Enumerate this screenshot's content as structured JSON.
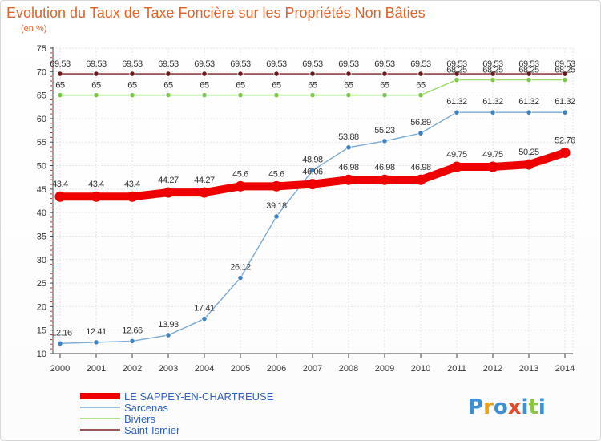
{
  "chart_data": {
    "type": "line",
    "title": "Evolution du Taux de Taxe Foncière sur les Propriétés Non Bâties",
    "ylabel": "(en %)",
    "xlabel": "",
    "x": [
      "2000",
      "2001",
      "2002",
      "2003",
      "2004",
      "2005",
      "2006",
      "2007",
      "2008",
      "2009",
      "2010",
      "2011",
      "2012",
      "2013",
      "2014"
    ],
    "ylim": [
      10,
      75
    ],
    "yticks": [
      10,
      15,
      20,
      25,
      30,
      35,
      40,
      45,
      50,
      55,
      60,
      65,
      70,
      75
    ],
    "grid": true,
    "legend_position": "bottom-left",
    "series": [
      {
        "name": "Saint-Ismier",
        "color": "#7b2020",
        "marker": "#6a1a1a",
        "values": [
          69.53,
          69.53,
          69.53,
          69.53,
          69.53,
          69.53,
          69.53,
          69.53,
          69.53,
          69.53,
          69.53,
          69.53,
          69.53,
          69.53,
          69.53
        ],
        "labels": [
          "69.53",
          "69.53",
          "69.53",
          "69.53",
          "69.53",
          "69.53",
          "69.53",
          "69.53",
          "69.53",
          "69.53",
          "69.53",
          "69.53",
          "69.53",
          "69.53",
          "69.53"
        ]
      },
      {
        "name": "Biviers",
        "color": "#9ad86a",
        "marker": "#7cc64a",
        "values": [
          65,
          65,
          65,
          65,
          65,
          65,
          65,
          65,
          65,
          65,
          65,
          68.25,
          68.25,
          68.25,
          68.25
        ],
        "labels": [
          "65",
          "65",
          "65",
          "65",
          "65",
          "65",
          "65",
          "65",
          "65",
          "65",
          "65",
          "68.25",
          "68.25",
          "68.25",
          "68.25"
        ]
      },
      {
        "name": "Sarcenas",
        "color": "#7aaad6",
        "marker": "#3f82c0",
        "values": [
          12.16,
          12.41,
          12.66,
          13.93,
          17.41,
          26.12,
          39.18,
          48.98,
          53.88,
          55.23,
          56.89,
          61.32,
          61.32,
          61.32,
          61.32
        ],
        "labels": [
          "12.16",
          "12.41",
          "12.66",
          "13.93",
          "17.41",
          "26.12",
          "39.18",
          "48.98",
          "53.88",
          "55.23",
          "56.89",
          "61.32",
          "61.32",
          "61.32",
          "61.32"
        ]
      },
      {
        "name": "LE SAPPEY-EN-CHARTREUSE",
        "color": "#ee0000",
        "marker": "#ee0000",
        "values": [
          43.4,
          43.4,
          43.4,
          44.27,
          44.27,
          45.6,
          45.6,
          46.06,
          46.98,
          46.98,
          46.98,
          49.75,
          49.75,
          50.25,
          52.76
        ],
        "labels": [
          "43.4",
          "43.4",
          "43.4",
          "44.27",
          "44.27",
          "45.6",
          "45.6",
          "46.06",
          "46.98",
          "46.98",
          "46.98",
          "49.75",
          "49.75",
          "50.25",
          "52.76"
        ]
      }
    ],
    "legend": [
      {
        "name": "LE SAPPEY-EN-CHARTREUSE",
        "color": "#ee0000"
      },
      {
        "name": "Sarcenas",
        "color": "#7aaad6"
      },
      {
        "name": "Biviers",
        "color": "#9ad86a"
      },
      {
        "name": "Saint-Ismier",
        "color": "#7b2020"
      }
    ]
  },
  "logo": {
    "text": "Proxiti",
    "colors": [
      "#3d8fd6",
      "#e8a21a",
      "#3d8fd6",
      "#e64a2a",
      "#3d8fd6",
      "#8cc63f",
      "#3d8fd6"
    ]
  }
}
